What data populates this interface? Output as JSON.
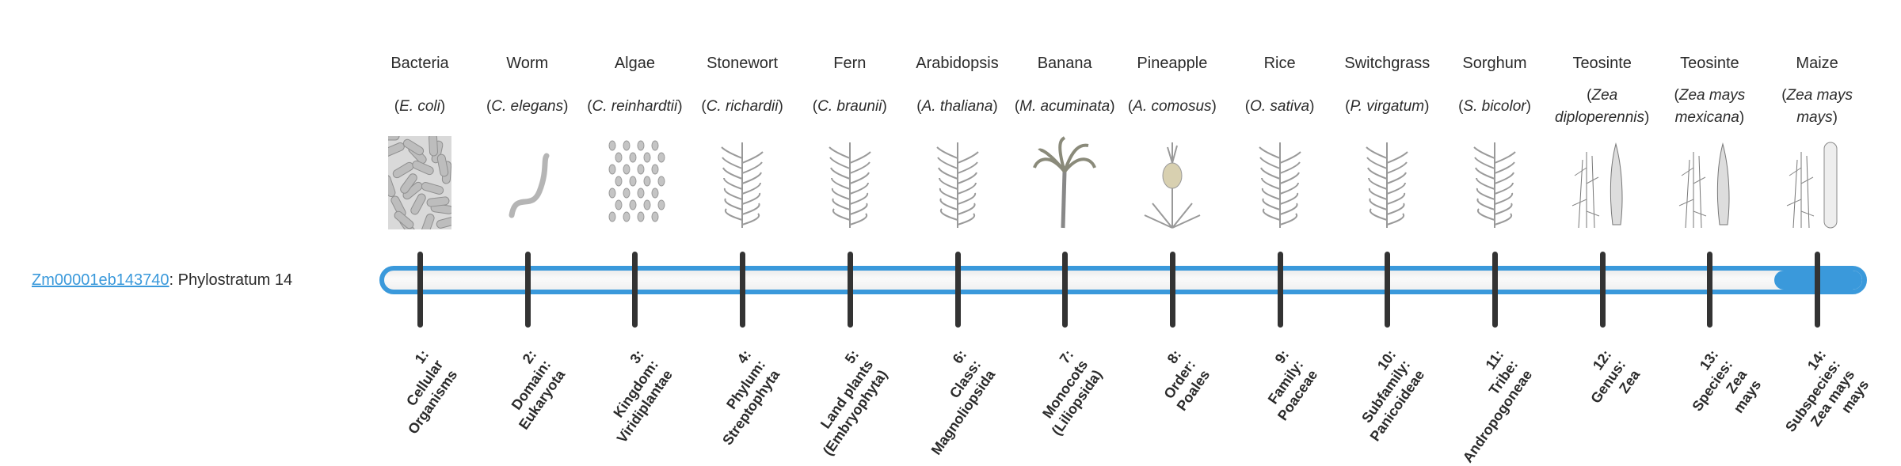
{
  "gene": {
    "id": "Zm00001eb143740",
    "separator": ": ",
    "phylostratum_label": "Phylostratum 14",
    "phylostratum": 14,
    "max_phylostratum": 14
  },
  "colors": {
    "accent": "#3a99db",
    "tick": "#333333",
    "text": "#2b2b2b"
  },
  "organisms": [
    {
      "name": "Bacteria",
      "pre": "(",
      "species": "E. coli",
      "post": ")",
      "icon": "bacteria-illustration"
    },
    {
      "name": "Worm",
      "pre": "(",
      "species": "C. elegans",
      "post": ")",
      "icon": "worm-illustration"
    },
    {
      "name": "Algae",
      "pre": "(",
      "species": "C. reinhardtii",
      "post": ")",
      "icon": "algae-illustration"
    },
    {
      "name": "Stonewort",
      "pre": "(",
      "species": "C. richardii",
      "post": ")",
      "icon": "stonewort-illustration"
    },
    {
      "name": "Fern",
      "pre": "(",
      "species": "C. braunii",
      "post": ")",
      "icon": "fern-illustration"
    },
    {
      "name": "Arabidopsis",
      "pre": "(",
      "species": "A. thaliana",
      "post": ")",
      "icon": "arabidopsis-illustration"
    },
    {
      "name": "Banana",
      "pre": "(",
      "species": "M. acuminata",
      "post": ")",
      "icon": "banana-illustration"
    },
    {
      "name": "Pineapple",
      "pre": "(",
      "species": "A. comosus",
      "post": ")",
      "icon": "pineapple-illustration"
    },
    {
      "name": "Rice",
      "pre": "(",
      "species": "O. sativa",
      "post": ")",
      "icon": "rice-illustration"
    },
    {
      "name": "Switchgrass",
      "pre": "(",
      "species": "P. virgatum",
      "post": ")",
      "icon": "switchgrass-illustration"
    },
    {
      "name": "Sorghum",
      "pre": "(",
      "species": "S. bicolor",
      "post": ")",
      "icon": "sorghum-illustration"
    },
    {
      "name": "Teosinte",
      "pre": "(",
      "species": "Zea diploperennis",
      "post": ")",
      "icon": "teosinte-illustration"
    },
    {
      "name": "Teosinte",
      "pre": "(",
      "species": "Zea mays mexicana",
      "post": ")",
      "icon": "teosinte-illustration"
    },
    {
      "name": "Maize",
      "pre": "(",
      "species": "Zea mays mays",
      "post": ")",
      "icon": "maize-illustration"
    }
  ],
  "strata": [
    [
      "1:",
      "Cellular",
      "Organisms"
    ],
    [
      "2:",
      "Domain:",
      "Eukaryota"
    ],
    [
      "3:",
      "Kingdom:",
      "Viridiplantae"
    ],
    [
      "4:",
      "Phylum:",
      "Streptophyta"
    ],
    [
      "5:",
      "Land plants",
      "(Embryophyta)"
    ],
    [
      "6:",
      "Class:",
      "Magnoliopsida"
    ],
    [
      "7:",
      "Monocots",
      "(Liliopsida)"
    ],
    [
      "8:",
      "Order:",
      "Poales"
    ],
    [
      "9:",
      "Family:",
      "Poaceae"
    ],
    [
      "10:",
      "Subfamily:",
      "Panicoideae"
    ],
    [
      "11:",
      "Tribe:",
      "Andropogoneae"
    ],
    [
      "12:",
      "Genus:",
      "Zea"
    ],
    [
      "13:",
      "Species:",
      "Zea",
      "mays"
    ],
    [
      "14:",
      "Subspecies:",
      "Zea mays",
      "mays"
    ]
  ]
}
